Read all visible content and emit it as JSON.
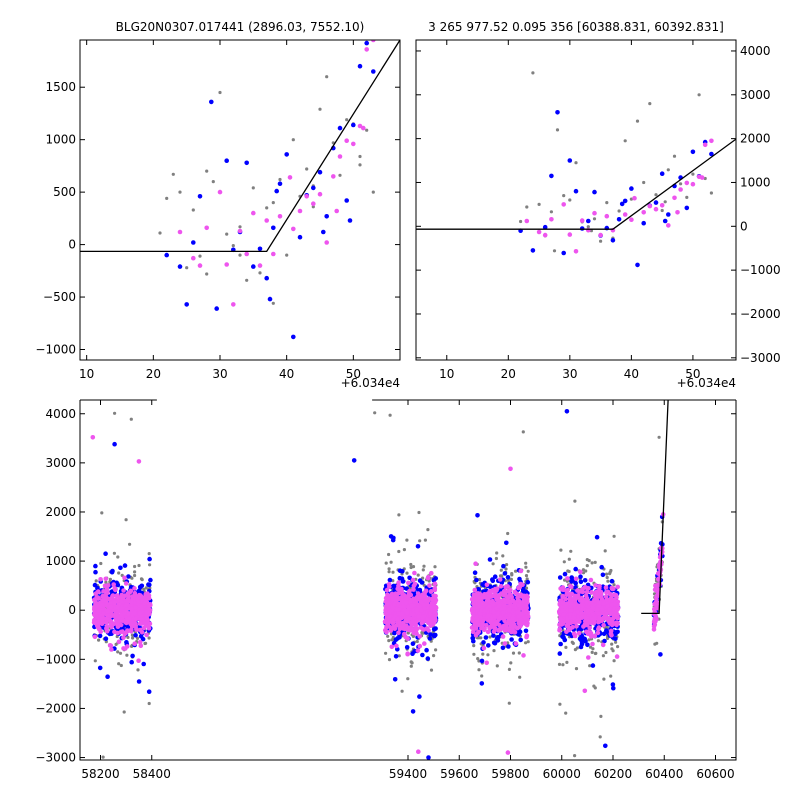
{
  "chart_data": [
    {
      "id": "top-left",
      "type": "scatter",
      "title": "BLG20N0307.017441 (2896.03, 7552.10)",
      "x_offset_label": "+6.034e4",
      "xlim": [
        9,
        57
      ],
      "ylim": [
        -1100,
        1950
      ],
      "xticks": [
        10,
        20,
        30,
        40,
        50
      ],
      "yticks": [
        -1000,
        -500,
        0,
        500,
        1000,
        1500
      ],
      "yaxis_side": "left",
      "model_line": [
        [
          9,
          -65
        ],
        [
          37,
          -65
        ],
        [
          57,
          1950
        ]
      ],
      "series": [
        {
          "color": "#808080",
          "points": [
            [
              21,
              110
            ],
            [
              22,
              440
            ],
            [
              23,
              670
            ],
            [
              24,
              500
            ],
            [
              25,
              -220
            ],
            [
              26,
              330
            ],
            [
              27,
              -110
            ],
            [
              28,
              700
            ],
            [
              29,
              600
            ],
            [
              30,
              1450
            ],
            [
              31,
              100
            ],
            [
              32,
              -10
            ],
            [
              33,
              170
            ],
            [
              34,
              -340
            ],
            [
              35,
              540
            ],
            [
              36,
              -270
            ],
            [
              37,
              350
            ],
            [
              38,
              400
            ],
            [
              39,
              620
            ],
            [
              40,
              -100
            ],
            [
              41,
              1000
            ],
            [
              42,
              460
            ],
            [
              43,
              720
            ],
            [
              44,
              360
            ],
            [
              45,
              1290
            ],
            [
              46,
              1600
            ],
            [
              47,
              970
            ],
            [
              48,
              660
            ],
            [
              49,
              1190
            ],
            [
              50,
              1150
            ],
            [
              51,
              760
            ],
            [
              52,
              1090
            ],
            [
              53,
              500
            ],
            [
              28,
              -280
            ],
            [
              33,
              -100
            ],
            [
              38,
              -560
            ],
            [
              44,
              560
            ],
            [
              51,
              840
            ]
          ]
        },
        {
          "color": "#0000ff",
          "points": [
            [
              22,
              -100
            ],
            [
              24,
              -210
            ],
            [
              25,
              -570
            ],
            [
              27,
              460
            ],
            [
              28.7,
              1360
            ],
            [
              29.5,
              -610
            ],
            [
              31,
              800
            ],
            [
              32,
              -50
            ],
            [
              33,
              120
            ],
            [
              34,
              780
            ],
            [
              35,
              -210
            ],
            [
              36,
              -40
            ],
            [
              37,
              -320
            ],
            [
              37.5,
              -520
            ],
            [
              38,
              160
            ],
            [
              39,
              580
            ],
            [
              40,
              860
            ],
            [
              41,
              -880
            ],
            [
              42,
              70
            ],
            [
              43,
              470
            ],
            [
              44,
              540
            ],
            [
              45,
              690
            ],
            [
              46,
              270
            ],
            [
              47,
              920
            ],
            [
              48,
              1110
            ],
            [
              49,
              420
            ],
            [
              50,
              1140
            ],
            [
              51,
              1700
            ],
            [
              52,
              1920
            ],
            [
              53,
              1650
            ],
            [
              49.5,
              230
            ],
            [
              38.5,
              510
            ],
            [
              45.5,
              120
            ],
            [
              26,
              20
            ]
          ]
        },
        {
          "color": "#ee55ee",
          "points": [
            [
              24,
              120
            ],
            [
              26,
              -130
            ],
            [
              27,
              -200
            ],
            [
              28,
              160
            ],
            [
              30,
              500
            ],
            [
              31,
              -190
            ],
            [
              32,
              -570
            ],
            [
              33,
              130
            ],
            [
              34,
              -90
            ],
            [
              35,
              300
            ],
            [
              36,
              -200
            ],
            [
              37,
              230
            ],
            [
              38,
              -90
            ],
            [
              39,
              270
            ],
            [
              41,
              150
            ],
            [
              42,
              320
            ],
            [
              43,
              460
            ],
            [
              44,
              390
            ],
            [
              45,
              480
            ],
            [
              46,
              20
            ],
            [
              47,
              650
            ],
            [
              48,
              840
            ],
            [
              49,
              990
            ],
            [
              50,
              960
            ],
            [
              51,
              1130
            ],
            [
              52,
              1860
            ],
            [
              53,
              1950
            ],
            [
              51.5,
              1110
            ],
            [
              47.5,
              320
            ],
            [
              40.5,
              640
            ]
          ]
        }
      ]
    },
    {
      "id": "top-right",
      "type": "scatter",
      "title": "3 265 977.52 0.095 356 [60388.831, 60392.831]",
      "x_offset_label": "+6.034e4",
      "xlim": [
        5,
        57
      ],
      "ylim": [
        -3050,
        4250
      ],
      "xticks": [
        10,
        20,
        30,
        40,
        50
      ],
      "yticks": [
        -3000,
        -2000,
        -1000,
        0,
        1000,
        2000,
        3000,
        4000
      ],
      "yaxis_side": "right",
      "model_line": [
        [
          5,
          -65
        ],
        [
          37,
          -65
        ],
        [
          57,
          1990
        ]
      ],
      "series": [
        {
          "color": "#808080",
          "points": [
            [
              22,
              110
            ],
            [
              23,
              440
            ],
            [
              24,
              3500
            ],
            [
              25,
              500
            ],
            [
              26,
              -220
            ],
            [
              27,
              330
            ],
            [
              28,
              2200
            ],
            [
              29,
              700
            ],
            [
              30,
              600
            ],
            [
              31,
              1450
            ],
            [
              32,
              100
            ],
            [
              33,
              -10
            ],
            [
              34,
              170
            ],
            [
              35,
              -340
            ],
            [
              36,
              540
            ],
            [
              37,
              -270
            ],
            [
              38,
              350
            ],
            [
              39,
              1950
            ],
            [
              40,
              620
            ],
            [
              41,
              2400
            ],
            [
              42,
              1000
            ],
            [
              43,
              2800
            ],
            [
              44,
              720
            ],
            [
              45,
              360
            ],
            [
              46,
              1290
            ],
            [
              47,
              1600
            ],
            [
              48,
              970
            ],
            [
              49,
              660
            ],
            [
              50,
              1190
            ],
            [
              51,
              3000
            ],
            [
              52,
              1090
            ],
            [
              53,
              760
            ],
            [
              27.5,
              -560
            ],
            [
              33.5,
              -100
            ],
            [
              45.5,
              560
            ]
          ]
        },
        {
          "color": "#0000ff",
          "points": [
            [
              22,
              -100
            ],
            [
              24,
              -550
            ],
            [
              26,
              -20
            ],
            [
              27,
              1150
            ],
            [
              28,
              2600
            ],
            [
              29,
              -610
            ],
            [
              30,
              1500
            ],
            [
              31,
              800
            ],
            [
              32,
              -50
            ],
            [
              33,
              120
            ],
            [
              34,
              780
            ],
            [
              35,
              -210
            ],
            [
              36,
              -40
            ],
            [
              37,
              -320
            ],
            [
              38,
              160
            ],
            [
              39,
              580
            ],
            [
              40,
              860
            ],
            [
              41,
              -880
            ],
            [
              42,
              70
            ],
            [
              43,
              470
            ],
            [
              44,
              540
            ],
            [
              45,
              1200
            ],
            [
              46,
              270
            ],
            [
              47,
              920
            ],
            [
              48,
              1110
            ],
            [
              49,
              420
            ],
            [
              50,
              1700
            ],
            [
              51,
              1140
            ],
            [
              52,
              1920
            ],
            [
              53,
              1650
            ],
            [
              38.5,
              510
            ],
            [
              45.5,
              120
            ]
          ]
        },
        {
          "color": "#ee55ee",
          "points": [
            [
              23,
              120
            ],
            [
              25,
              -130
            ],
            [
              26,
              -200
            ],
            [
              27,
              160
            ],
            [
              29,
              500
            ],
            [
              30,
              -190
            ],
            [
              31,
              -570
            ],
            [
              32,
              130
            ],
            [
              33,
              -90
            ],
            [
              34,
              300
            ],
            [
              35,
              -200
            ],
            [
              36,
              230
            ],
            [
              37,
              -90
            ],
            [
              39,
              270
            ],
            [
              40,
              150
            ],
            [
              42,
              320
            ],
            [
              43,
              460
            ],
            [
              44,
              390
            ],
            [
              45,
              480
            ],
            [
              46,
              20
            ],
            [
              47,
              650
            ],
            [
              48,
              840
            ],
            [
              49,
              990
            ],
            [
              50,
              960
            ],
            [
              51,
              1130
            ],
            [
              52,
              1860
            ],
            [
              53,
              1950
            ],
            [
              51.5,
              1110
            ],
            [
              47.5,
              320
            ],
            [
              40.5,
              640
            ]
          ]
        }
      ]
    },
    {
      "id": "bottom",
      "type": "scatter",
      "xlim": [
        58120,
        60680
      ],
      "ylim": [
        -3050,
        4280
      ],
      "xticks": [
        58200,
        58400,
        59400,
        59600,
        59800,
        60000,
        60200,
        60400,
        60600
      ],
      "yticks": [
        -3000,
        -2000,
        -1000,
        0,
        1000,
        2000,
        3000,
        4000
      ],
      "yaxis_side": "left",
      "model_line": [
        [
          60310,
          -65
        ],
        [
          60380,
          -65
        ],
        [
          60415,
          4280
        ]
      ],
      "season_gap": [
        58420,
        59260
      ],
      "seasons": [
        {
          "start": 58175,
          "end": 58395,
          "gray": 180,
          "blue": 300,
          "pink": 500
        },
        {
          "start": 59310,
          "end": 59510,
          "gray": 240,
          "blue": 350,
          "pink": 550
        },
        {
          "start": 59650,
          "end": 59870,
          "gray": 220,
          "blue": 350,
          "pink": 550
        },
        {
          "start": 59990,
          "end": 60220,
          "gray": 220,
          "blue": 330,
          "pink": 500
        },
        {
          "start": 60360,
          "end": 60393,
          "gray": 60,
          "blue": 25,
          "pink": 55
        }
      ],
      "outlier_points": [
        {
          "color": "#0000ff",
          "points": [
            [
              59190,
              3050
            ],
            [
              58255,
              3380
            ],
            [
              58390,
              -1660
            ],
            [
              59420,
              -2060
            ],
            [
              59480,
              -3000
            ],
            [
              60020,
              4050
            ],
            [
              60170,
              -2760
            ],
            [
              60385,
              -900
            ],
            [
              60392,
              1900
            ]
          ]
        },
        {
          "color": "#ee55ee",
          "points": [
            [
              58170,
              3520
            ],
            [
              58350,
              3030
            ],
            [
              59800,
              2880
            ],
            [
              59790,
              -2900
            ],
            [
              60090,
              -1640
            ],
            [
              60396,
              1950
            ],
            [
              59440,
              -2880
            ]
          ]
        },
        {
          "color": "#808080",
          "points": [
            [
              58255,
              4010
            ],
            [
              58320,
              3890
            ],
            [
              59270,
              4020
            ],
            [
              59330,
              3970
            ],
            [
              59850,
              3630
            ],
            [
              60380,
              3520
            ],
            [
              58210,
              -2990
            ],
            [
              58390,
              -1900
            ],
            [
              60050,
              -2960
            ],
            [
              60150,
              -2580
            ]
          ]
        }
      ]
    }
  ]
}
